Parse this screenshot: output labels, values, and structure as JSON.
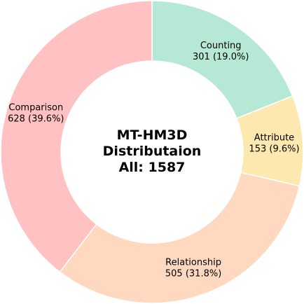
{
  "chart_data": {
    "type": "pie",
    "variant": "donut",
    "center_text": [
      "MT-HM3D",
      "Distributaion",
      "All: 1587"
    ],
    "total": 1587,
    "slices": [
      {
        "label": "Counting",
        "value": 301,
        "percent_label": "301 (19.0%)",
        "color": "#b5e8d5"
      },
      {
        "label": "Attribute",
        "value": 153,
        "percent_label": "153 (9.6%)",
        "color": "#fde9b0"
      },
      {
        "label": "Relationship",
        "value": 505,
        "percent_label": "505 (31.8%)",
        "color": "#fed8bf"
      },
      {
        "label": "Comparison",
        "value": 628,
        "percent_label": "628 (39.6%)",
        "color": "#ffc1c1"
      }
    ],
    "start_angle": "top",
    "direction": "clockwise"
  }
}
